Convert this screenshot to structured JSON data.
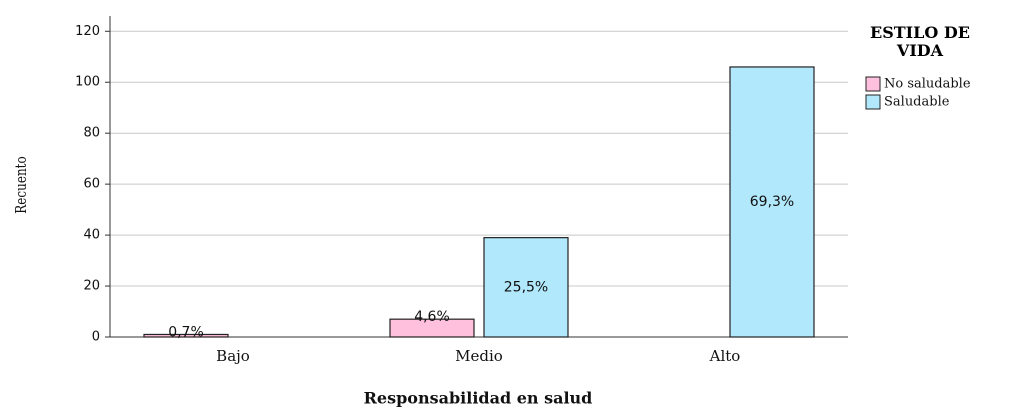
{
  "chart_data": {
    "type": "bar",
    "categories": [
      "Bajo",
      "Medio",
      "Alto"
    ],
    "series": [
      {
        "name": "No saludable",
        "color": "#ffc0de",
        "values": [
          1,
          7,
          null
        ],
        "value_labels": [
          "0,7%",
          "4,6%",
          null
        ]
      },
      {
        "name": "Saludable",
        "color": "#b2e8fb",
        "values": [
          null,
          39,
          106
        ],
        "value_labels": [
          null,
          "25,5%",
          "69,3%"
        ]
      }
    ],
    "ylim": [
      0,
      126
    ],
    "yticks": [
      0,
      20,
      40,
      60,
      80,
      100,
      120
    ],
    "grid": true,
    "xlabel": "Responsabilidad en salud",
    "ylabel": "Recuento",
    "legend_title": "ESTILO DE VIDA",
    "legend": "right"
  }
}
